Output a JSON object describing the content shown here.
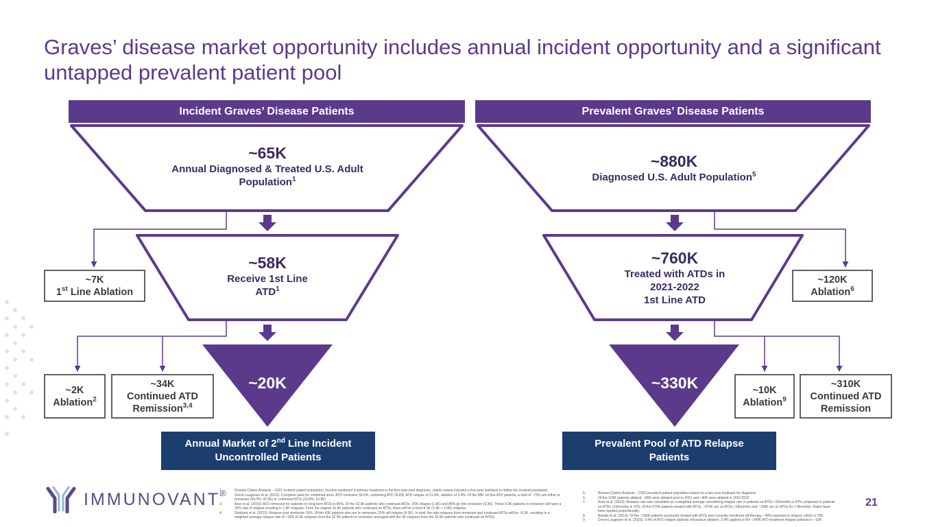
{
  "title": "Graves’ disease market opportunity includes annual incident opportunity and a significant untapped prevalent patient pool",
  "incident": {
    "header": "Incident Graves’ Disease Patients",
    "top": {
      "value": "~65K",
      "label": "Annual Diagnosed & Treated U.S. Adult Population",
      "sup": "1"
    },
    "middle": {
      "value": "~58K",
      "label": "Receive 1st Line ATD",
      "sup": "1"
    },
    "bottom": {
      "value": "~20K"
    },
    "side1": {
      "value": "~7K",
      "label_pre": "1",
      "label_sup": "st",
      "label_post": " Line Ablation"
    },
    "side2": {
      "value": "~2K",
      "label": "Ablation",
      "sup": "2"
    },
    "side3": {
      "value": "~34K",
      "label": "Continued ATD Remission",
      "sup": "3,4"
    },
    "result": {
      "line1_pre": "Annual Market of 2",
      "line1_sup": "nd",
      "line1_post": " Line Incident",
      "line2": "Uncontrolled Patients"
    }
  },
  "prevalent": {
    "header": "Prevalent Graves’ Disease Patients",
    "top": {
      "value": "~880K",
      "label": "Diagnosed U.S. Adult Population",
      "sup": "5"
    },
    "middle": {
      "value": "~760K",
      "label1": "Treated with ATDs in",
      "label2": "2021-2022",
      "label3": "1st Line ATD"
    },
    "bottom": {
      "value": "~330K"
    },
    "side1": {
      "value": "~120K",
      "label": "Ablation",
      "sup": "6"
    },
    "side2": {
      "value": "~10K",
      "label": "Ablation",
      "sup": "9"
    },
    "side3": {
      "value": "~310K",
      "label": "Continued ATD Remission"
    },
    "result": {
      "line1": "Prevalent Pool of ATD Relapse",
      "line2": "Patients"
    }
  },
  "footnotes_left": [
    {
      "num": "1.",
      "text": "Roivant Claims Analysis – 2021 incident patient population, first-line treatment is primary treatment in the first-year post diagnosis, claims review included a five-year lookback to define the incident population"
    },
    {
      "num": "2.",
      "text": "Grove-Laugesen et al. (2023): Complete rates for combined arms: ATD remission 56.0%, continuing ATD 18.8%, ATD relapse of 21.8%, ablation of 3.4%. Of the 58K 1st line ATD patients, a total of ~75% are either in remission (56.0%: 32.5K) or continued ATDs (18.8%: 10.9K)"
    },
    {
      "num": "3.",
      "text": "Azizi et al. (2019): ATD remission for patients on long-term ATDs is 85%. Of the 10.9K patients who continued ATDs, 15% relapse (1.6K) and 85% go into remission (9.3K). These 9.3K patients in remission will have a 15% rate of relapse resulting in 1.4K relapses. From the original 10.9K patients who continued on ATDs, there will be a total of 3K (1.4K + 1.6K) relapses."
    },
    {
      "num": "4.",
      "text": "Stokland et al. (2023): Relapse post remission 15%. Of the 42K patients who are in remission, 15% will relapse (6.3K). In total, the rate relapses from remission and continued ATDs will be ~9.3K, resulting in a weighted average relapse rate of ~18% (6.3K relapses from the 32.5K patients in remission averaged with the 3K relapses from the 10.9K patients who continued on ATDs)"
    }
  ],
  "footnotes_right": [
    {
      "num": "5.",
      "text": "Roivant Claims Analysis – 2022 prevalent patient population based on a two-year lookback for diagnosis"
    },
    {
      "num": "6.",
      "text": "Of the 120K patients ablated, ~80K were ablated prior to 2021 and ~40K were ablated in 2021/2022"
    },
    {
      "num": "7.",
      "text": "Azizi et al. (2019): Relapse rate was calculated as a weighted average considering relapse rate in patients on ATDs <18months is 53% compared to patients on ATDs >18months is 15%. Of the 570K patients treated with ATDs, ~470K are on ATDs <18months and ~100K are on ATDs for >18months. Rates have been applied proportionally."
    },
    {
      "num": "8.",
      "text": "Bandai et al. (2019): Of the ~190K patients previously treated with ATDs and currently monitored off-therapy, ~40% experience relapse, which is 75K"
    },
    {
      "num": "9.",
      "text": "Grove-Laugesen et al. (2023): 3.4% of ATD relapse patients will pursue ablation, 3.4% applied to the ~340K ATD treatment relapse patients is ~10K"
    }
  ],
  "logo_text": "IMMUNOVANT",
  "logo_reg": "®",
  "page_number": "21"
}
